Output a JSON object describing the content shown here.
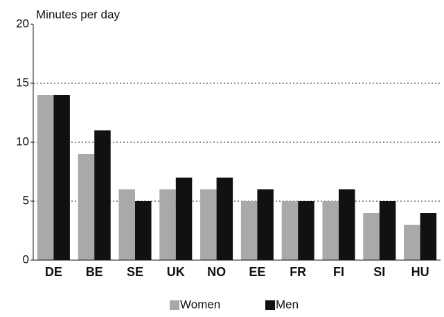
{
  "chart_data": {
    "type": "bar",
    "ylabel": "Minutes per day",
    "categories": [
      "DE",
      "BE",
      "SE",
      "UK",
      "NO",
      "EE",
      "FR",
      "FI",
      "SI",
      "HU"
    ],
    "series": [
      {
        "name": "Women",
        "color": "#a9a9a9",
        "values": [
          14,
          9,
          6,
          6,
          6,
          5,
          5,
          5,
          4,
          3
        ]
      },
      {
        "name": "Men",
        "color": "#111111",
        "values": [
          14,
          11,
          5,
          7,
          7,
          6,
          5,
          6,
          5,
          4
        ]
      }
    ],
    "ylim": [
      0,
      20
    ],
    "yticks": [
      0,
      5,
      10,
      15,
      20
    ],
    "grid": true,
    "legend": "bottom"
  }
}
